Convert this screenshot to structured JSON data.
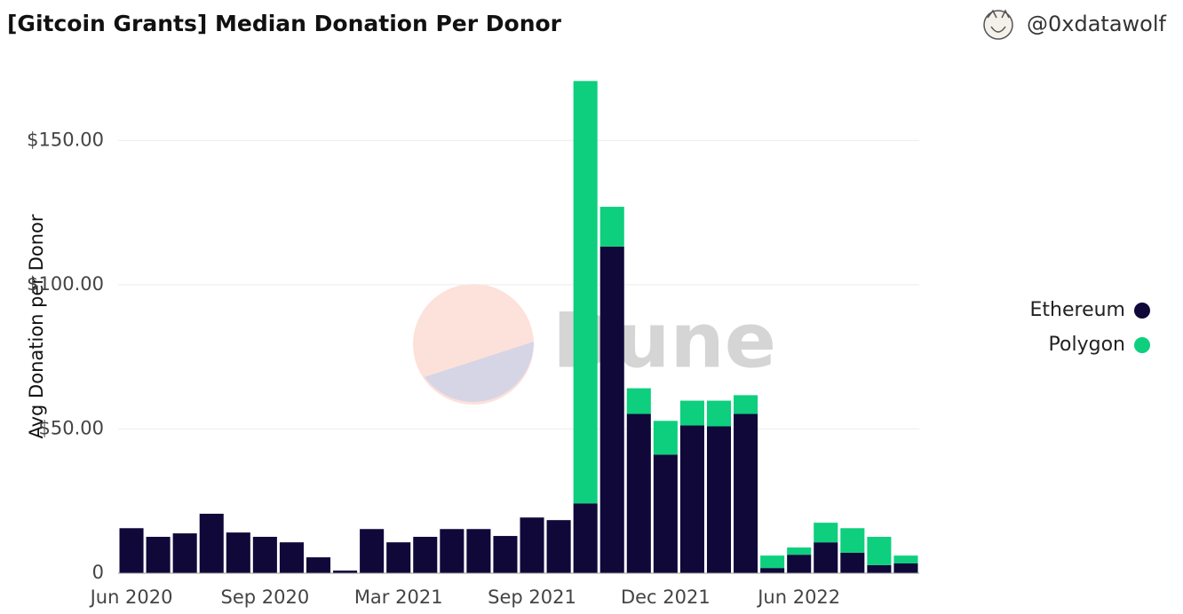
{
  "chart_data": {
    "type": "bar",
    "stacked": true,
    "title": "[Gitcoin Grants] Median Donation Per Donor",
    "author": "@0xdatawolf",
    "watermark": "Dune",
    "y_label": "Avg Donation per Donor",
    "categories": [
      "Jun 2020",
      null,
      null,
      null,
      null,
      "Sep 2020",
      null,
      null,
      null,
      null,
      "Mar 2021",
      null,
      null,
      null,
      null,
      "Sep 2021",
      null,
      null,
      null,
      null,
      "Dec 2021",
      null,
      null,
      null,
      null,
      "Jun 2022",
      null,
      null,
      null,
      null
    ],
    "series": [
      {
        "name": "Ethereum",
        "color": "#0f0839",
        "values": [
          15.6,
          12.6,
          13.8,
          20.6,
          14.1,
          12.6,
          10.7,
          5.5,
          0.9,
          15.3,
          10.7,
          12.6,
          15.3,
          15.3,
          12.9,
          19.3,
          18.4,
          24.2,
          113.2,
          55.2,
          41.1,
          51.2,
          50.9,
          55.2,
          1.8,
          6.4,
          10.7,
          7.1,
          2.8,
          3.4
        ]
      },
      {
        "name": "Polygon",
        "color": "#0dcf7e",
        "values": [
          0,
          0,
          0,
          0,
          0,
          0,
          0,
          0,
          0,
          0,
          0,
          0,
          0,
          0,
          0,
          0,
          0,
          146.4,
          13.8,
          8.9,
          11.7,
          8.6,
          8.9,
          6.5,
          4.3,
          2.5,
          6.8,
          8.5,
          9.8,
          2.7
        ]
      }
    ],
    "ylim": [
      0,
      171
    ],
    "yticks": [
      0,
      {
        "value": 50,
        "label": "$50.00"
      },
      {
        "value": 100,
        "label": "$100.00"
      },
      {
        "value": 150,
        "label": "$150.00"
      }
    ],
    "grid": true,
    "legend": "right"
  }
}
